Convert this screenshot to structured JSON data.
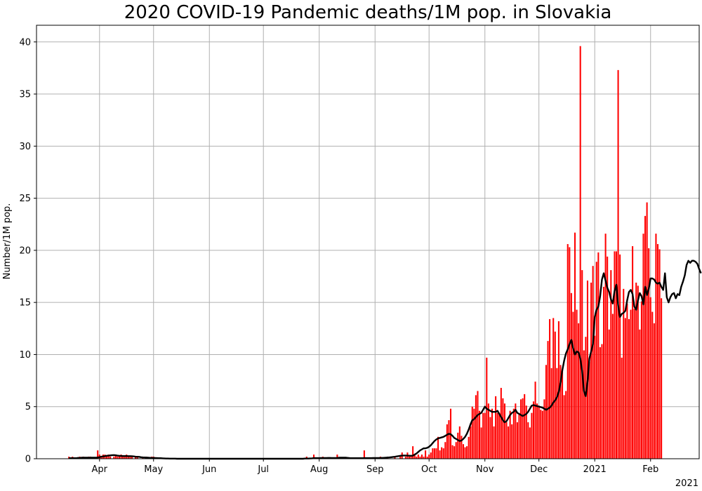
{
  "chart_data": {
    "type": "bar",
    "title": "2020 COVID-19 Pandemic deaths/1M pop. in Slovakia",
    "xlabel": "",
    "ylabel": "Number/1M pop.",
    "year_label": "2021",
    "xlim": [
      "2020-02-26",
      "2021-02-28"
    ],
    "ylim": [
      0,
      41.6
    ],
    "yticks": [
      0,
      5,
      10,
      15,
      20,
      25,
      30,
      35,
      40
    ],
    "xticks": [
      {
        "date": "2020-04-01",
        "label": "Apr"
      },
      {
        "date": "2020-05-01",
        "label": "May"
      },
      {
        "date": "2020-06-01",
        "label": "Jun"
      },
      {
        "date": "2020-07-01",
        "label": "Jul"
      },
      {
        "date": "2020-08-01",
        "label": "Aug"
      },
      {
        "date": "2020-09-01",
        "label": "Sep"
      },
      {
        "date": "2020-10-01",
        "label": "Oct"
      },
      {
        "date": "2020-11-01",
        "label": "Nov"
      },
      {
        "date": "2020-12-01",
        "label": "Dec"
      },
      {
        "date": "2021-01-01",
        "label": "2021"
      },
      {
        "date": "2021-02-01",
        "label": "Feb"
      }
    ],
    "grid": true,
    "colors": {
      "bars": "#ff0000",
      "line": "#000000",
      "grid": "#b0b0b0"
    },
    "series": [
      {
        "type": "bar",
        "start_date": "2020-03-15",
        "values": [
          0.2,
          0,
          0.2,
          0,
          0,
          0,
          0.2,
          0,
          0.2,
          0,
          0,
          0.2,
          0.2,
          0,
          0,
          0,
          0.8,
          0.4,
          0.2,
          0.4,
          0.4,
          0.2,
          0.4,
          0.2,
          0,
          0.2,
          0.4,
          0.2,
          0.2,
          0.4,
          0.2,
          0.2,
          0.4,
          0.2,
          0.2,
          0.2,
          0,
          0.2,
          0.2,
          0,
          0,
          0.2,
          0,
          0.2,
          0,
          0,
          0.2,
          0.2,
          0,
          0,
          0,
          0,
          0,
          0,
          0,
          0,
          0,
          0,
          0,
          0,
          0,
          0,
          0,
          0,
          0,
          0,
          0,
          0,
          0,
          0,
          0,
          0,
          0,
          0,
          0,
          0,
          0,
          0,
          0,
          0,
          0,
          0,
          0,
          0,
          0,
          0,
          0,
          0,
          0,
          0,
          0,
          0,
          0,
          0,
          0,
          0,
          0,
          0,
          0,
          0,
          0,
          0,
          0,
          0,
          0,
          0,
          0,
          0,
          0,
          0,
          0,
          0,
          0,
          0,
          0,
          0,
          0,
          0,
          0,
          0,
          0,
          0,
          0,
          0,
          0,
          0,
          0,
          0,
          0,
          0,
          0,
          0,
          0.2,
          0,
          0,
          0,
          0.4,
          0,
          0,
          0,
          0,
          0.2,
          0,
          0,
          0,
          0,
          0,
          0,
          0,
          0.4,
          0,
          0,
          0,
          0,
          0,
          0,
          0,
          0,
          0,
          0,
          0,
          0,
          0,
          0,
          0.8,
          0,
          0,
          0,
          0,
          0,
          0,
          0,
          0,
          0.2,
          0,
          0,
          0,
          0.2,
          0,
          0,
          0,
          0.2,
          0,
          0,
          0.2,
          0.6,
          0,
          0.2,
          0.6,
          0.2,
          0.2,
          1.2,
          0.4,
          0.2,
          0.4,
          0.2,
          0.4,
          0.2,
          0.8,
          0.2,
          0.4,
          0.6,
          1.0,
          1.0,
          1.0,
          2.1,
          0.8,
          1.1,
          1.0,
          1.6,
          3.3,
          3.7,
          4.8,
          1.3,
          1.2,
          1.6,
          2.5,
          3.1,
          2.2,
          1.4,
          1.1,
          1.2,
          2.1,
          3.1,
          5.0,
          4.8,
          6.1,
          6.5,
          4.6,
          3.0,
          4.4,
          4.4,
          9.7,
          5.3,
          4.0,
          4.8,
          3.1,
          6.0,
          4.4,
          4.4,
          6.8,
          5.8,
          5.3,
          3.5,
          3.1,
          4.6,
          3.3,
          4.8,
          5.3,
          3.5,
          4.4,
          5.7,
          5.8,
          6.2,
          5.1,
          3.5,
          3.0,
          4.4,
          5.5,
          7.4,
          5.3,
          5.1,
          4.7,
          4.6,
          5.7,
          9.0,
          11.3,
          13.4,
          8.7,
          13.5,
          12.2,
          8.7,
          13.2,
          9.0,
          8.6,
          6.1,
          6.5,
          20.6,
          20.3,
          15.9,
          14.1,
          21.7,
          14.3,
          13.0,
          39.6,
          18.1,
          10.4,
          11.7,
          17.1,
          9.3,
          16.9,
          18.5,
          11.8,
          18.9,
          19.8,
          10.7,
          11.0,
          16.5,
          21.6,
          19.4,
          12.4,
          18.1,
          13.9,
          19.9,
          19.9,
          37.3,
          19.6,
          9.7,
          16.3,
          13.5,
          14.9,
          13.4,
          14.3,
          20.4,
          14.4,
          16.9,
          16.6,
          12.4,
          15.1,
          21.6,
          23.3,
          24.6,
          20.2,
          15.5,
          14.1,
          13.0,
          21.6,
          20.6,
          20.1,
          15.4
        ]
      },
      {
        "type": "line",
        "name": "",
        "start_date": "2020-03-15",
        "values": [
          0.05,
          0.05,
          0.05,
          0.05,
          0.05,
          0.08,
          0.08,
          0.1,
          0.1,
          0.1,
          0.1,
          0.1,
          0.1,
          0.1,
          0.1,
          0.1,
          0.12,
          0.15,
          0.2,
          0.22,
          0.25,
          0.28,
          0.3,
          0.32,
          0.34,
          0.35,
          0.33,
          0.3,
          0.28,
          0.27,
          0.26,
          0.26,
          0.26,
          0.25,
          0.25,
          0.24,
          0.22,
          0.2,
          0.19,
          0.18,
          0.15,
          0.13,
          0.12,
          0.11,
          0.1,
          0.09,
          0.08,
          0.08,
          0.07,
          0.06,
          0.05,
          0.05,
          0.04,
          0.03,
          0.02,
          0.02,
          0.01,
          0.01,
          0.01,
          0.01,
          0,
          0,
          0,
          0,
          0,
          0,
          0,
          0,
          0,
          0,
          0,
          0,
          0,
          0,
          0,
          0,
          0,
          0,
          0,
          0,
          0,
          0,
          0,
          0,
          0,
          0,
          0,
          0,
          0,
          0,
          0,
          0,
          0,
          0,
          0,
          0,
          0,
          0,
          0,
          0,
          0,
          0,
          0,
          0,
          0,
          0,
          0,
          0,
          0,
          0,
          0,
          0,
          0,
          0,
          0,
          0,
          0,
          0,
          0,
          0,
          0,
          0,
          0,
          0,
          0,
          0,
          0,
          0,
          0,
          0,
          0,
          0.02,
          0.02,
          0.02,
          0.03,
          0.04,
          0.06,
          0.06,
          0.06,
          0.06,
          0.07,
          0.07,
          0.07,
          0.07,
          0.08,
          0.08,
          0.07,
          0.07,
          0.07,
          0.08,
          0.1,
          0.1,
          0.1,
          0.1,
          0.1,
          0.08,
          0.06,
          0.05,
          0.05,
          0.05,
          0.05,
          0.05,
          0.05,
          0.05,
          0.06,
          0.06,
          0.06,
          0.06,
          0.06,
          0.07,
          0.07,
          0.07,
          0.07,
          0.08,
          0.08,
          0.09,
          0.1,
          0.12,
          0.13,
          0.15,
          0.17,
          0.19,
          0.22,
          0.25,
          0.28,
          0.3,
          0.31,
          0.31,
          0.3,
          0.29,
          0.28,
          0.3,
          0.4,
          0.5,
          0.65,
          0.8,
          0.9,
          1.0,
          1.0,
          1.05,
          1.15,
          1.3,
          1.5,
          1.7,
          1.85,
          1.95,
          2.0,
          2.05,
          2.1,
          2.2,
          2.3,
          2.4,
          2.35,
          2.2,
          2.0,
          1.9,
          1.8,
          1.7,
          1.75,
          1.9,
          2.1,
          2.4,
          2.8,
          3.3,
          3.7,
          3.8,
          4.0,
          4.2,
          4.3,
          4.4,
          4.7,
          5.0,
          4.8,
          4.7,
          4.6,
          4.5,
          4.5,
          4.5,
          4.6,
          4.3,
          4.0,
          3.7,
          3.5,
          3.6,
          3.9,
          4.2,
          4.4,
          4.5,
          4.7,
          4.4,
          4.3,
          4.2,
          4.1,
          4.2,
          4.3,
          4.5,
          4.8,
          5.1,
          5.15,
          5.1,
          5.05,
          5.0,
          4.95,
          4.9,
          4.8,
          4.7,
          4.8,
          4.9,
          5.1,
          5.4,
          5.6,
          5.9,
          6.4,
          7.3,
          8.5,
          9.4,
          10.1,
          10.5,
          11.0,
          11.4,
          10.6,
          10.0,
          10.3,
          10.2,
          9.6,
          8.4,
          6.5,
          6.0,
          7.4,
          9.6,
          10.3,
          11.0,
          13.6,
          14.3,
          14.6,
          15.6,
          17.2,
          17.8,
          17.1,
          16.4,
          16.0,
          15.3,
          14.9,
          16.1,
          16.7,
          14.7,
          13.6,
          13.9,
          14.0,
          14.2,
          15.2,
          16.0,
          16.2,
          15.8,
          14.6,
          14.3,
          15.2,
          15.9,
          15.6,
          14.8,
          16.5,
          15.7,
          16.3,
          17.3,
          17.3,
          17.2,
          16.9,
          16.8,
          16.9,
          16.5,
          16.2,
          17.8,
          15.5,
          15.0,
          15.5,
          15.8,
          15.9,
          15.4,
          15.8,
          15.7,
          16.5,
          17.0,
          17.6,
          18.6,
          19.0,
          18.8,
          19.0,
          19.0,
          18.9,
          18.7,
          18.2,
          17.8
        ]
      }
    ]
  }
}
